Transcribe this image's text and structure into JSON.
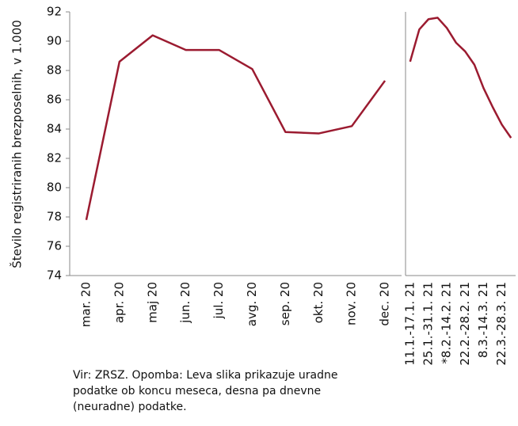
{
  "chart_data": [
    {
      "type": "line",
      "ylabel": "Število registriranih brezposelnih, v 1.000",
      "categories": [
        "mar. 20",
        "apr. 20",
        "maj 20",
        "jun. 20",
        "jul. 20",
        "avg. 20",
        "sep. 20",
        "okt. 20",
        "nov. 20",
        "dec. 20"
      ],
      "series": [
        {
          "color": "#9b1b30",
          "values": [
            77.8,
            88.6,
            90.4,
            89.4,
            89.4,
            88.1,
            83.8,
            83.7,
            84.2,
            87.3
          ]
        }
      ],
      "ylim": [
        74,
        92
      ],
      "yticks": [
        74,
        76,
        78,
        80,
        82,
        84,
        86,
        88,
        90,
        92
      ]
    },
    {
      "type": "line",
      "categories": [
        "11.1.-17.1. 21",
        null,
        "25.1.-31.1. 21",
        null,
        "*8.2.-14.2. 21",
        null,
        "22.2.-28.2. 21",
        null,
        "8.3.-14.3. 21",
        null,
        "22.3.-28.3. 21",
        null
      ],
      "series": [
        {
          "color": "#9b1b30",
          "values": [
            88.6,
            90.8,
            91.5,
            91.6,
            90.9,
            89.9,
            89.3,
            88.4,
            86.8,
            85.5,
            84.3,
            83.4
          ]
        }
      ],
      "ylim": [
        74,
        92
      ]
    }
  ],
  "note": [
    "Vir: ZRSZ. Opomba: Leva slika prikazuje uradne",
    "podatke ob koncu meseca, desna pa dnevne",
    "(neuradne) podatke."
  ]
}
